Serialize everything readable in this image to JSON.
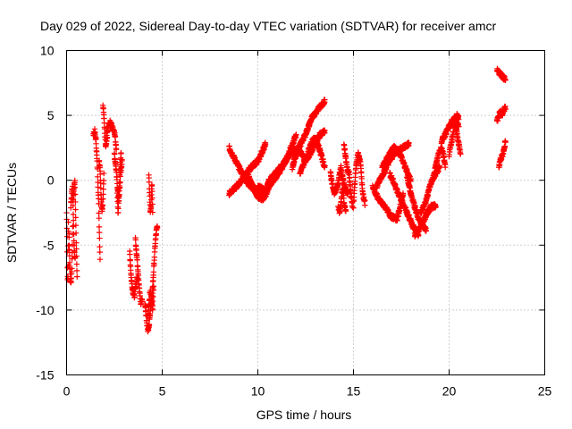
{
  "chart_data": {
    "type": "scatter",
    "title": "Day 029 of 2022, Sidereal Day-to-day VTEC variation (SDTVAR) for receiver amcr",
    "xlabel": "GPS time / hours",
    "ylabel": "SDTVAR / TECUs",
    "xlim": [
      0,
      25
    ],
    "ylim": [
      -15,
      10
    ],
    "x_ticks": [
      "0",
      "5",
      "10",
      "15",
      "20",
      "25"
    ],
    "y_ticks": [
      "-15",
      "-10",
      "-5",
      "0",
      "5",
      "10"
    ],
    "grid": true,
    "marker": "+",
    "color": "#ff0000",
    "segments": [
      {
        "x0": 0.0,
        "x1": 0.12,
        "y": [
          -2.5,
          -4.0,
          -7.5,
          -7.6,
          -3.0,
          -6.5
        ]
      },
      {
        "x0": 0.12,
        "x1": 0.32,
        "y": [
          -4.0,
          -6.0,
          -7.7,
          -7.8,
          -6.5,
          -3.5
        ]
      },
      {
        "x0": 0.22,
        "x1": 0.45,
        "y": [
          -2.0,
          -1.0,
          -0.5,
          -3.0,
          -5.5,
          -6.0
        ]
      },
      {
        "x0": 0.35,
        "x1": 0.55,
        "y": [
          -1.5,
          -0.5,
          0.0,
          -2.5,
          -5.0,
          -7.5
        ]
      },
      {
        "x0": 1.4,
        "x1": 1.75,
        "y": [
          3.5,
          3.8,
          3.0,
          1.0,
          -2.0,
          -6.0
        ]
      },
      {
        "x0": 1.7,
        "x1": 1.95,
        "y": [
          1.5,
          1.0,
          -1.0,
          -2.5,
          -1.5,
          0.5
        ]
      },
      {
        "x0": 1.9,
        "x1": 2.15,
        "y": [
          5.8,
          5.0,
          3.5,
          2.5,
          3.0,
          4.0
        ]
      },
      {
        "x0": 2.1,
        "x1": 2.6,
        "y": [
          3.5,
          4.3,
          4.5,
          4.0,
          3.8,
          2.5
        ]
      },
      {
        "x0": 2.5,
        "x1": 2.9,
        "y": [
          2.0,
          1.0,
          -0.5,
          -1.5,
          0.5,
          1.5
        ]
      },
      {
        "x0": 2.65,
        "x1": 2.85,
        "y": [
          -1.0,
          -2.5,
          -1.5,
          0.0,
          1.5,
          2.0
        ]
      },
      {
        "x0": 3.3,
        "x1": 3.7,
        "y": [
          -5.5,
          -7.5,
          -8.5,
          -9.0,
          -8.0,
          -7.5
        ]
      },
      {
        "x0": 3.6,
        "x1": 3.95,
        "y": [
          -4.5,
          -5.8,
          -7.0,
          -8.5,
          -9.5,
          -9.2
        ]
      },
      {
        "x0": 4.1,
        "x1": 4.45,
        "y": [
          -9.5,
          -10.5,
          -11.5,
          -11.3,
          -10.0,
          -9.0
        ]
      },
      {
        "x0": 4.25,
        "x1": 4.55,
        "y": [
          -10.5,
          -9.5,
          -8.5,
          -9.0,
          -10.0,
          -8.0
        ]
      },
      {
        "x0": 4.3,
        "x1": 4.5,
        "y": [
          0.5,
          -1.0,
          -2.5,
          -2.0,
          0.0,
          -2.5
        ]
      },
      {
        "x0": 4.45,
        "x1": 4.75,
        "y": [
          -9.5,
          -8.0,
          -6.5,
          -5.0,
          -4.0,
          -3.5
        ]
      },
      {
        "x0": 8.5,
        "x1": 10.2,
        "y": [
          2.5,
          1.5,
          0.5,
          -0.3,
          -0.8,
          -1.0
        ]
      },
      {
        "x0": 8.5,
        "x1": 10.4,
        "y": [
          -1.0,
          -0.5,
          0.2,
          1.0,
          1.5,
          2.8
        ]
      },
      {
        "x0": 9.5,
        "x1": 10.7,
        "y": [
          0.3,
          -0.5,
          -1.2,
          -1.5,
          -1.0,
          0.0
        ]
      },
      {
        "x0": 10.0,
        "x1": 12.0,
        "y": [
          -0.5,
          -0.8,
          0.0,
          0.8,
          2.0,
          3.5
        ]
      },
      {
        "x0": 10.5,
        "x1": 12.5,
        "y": [
          -0.2,
          0.5,
          1.2,
          2.0,
          2.5,
          1.5
        ]
      },
      {
        "x0": 11.8,
        "x1": 13.5,
        "y": [
          1.0,
          2.5,
          3.5,
          4.8,
          5.5,
          6.1
        ]
      },
      {
        "x0": 12.2,
        "x1": 13.5,
        "y": [
          0.5,
          1.5,
          2.0,
          2.8,
          3.5,
          3.8
        ]
      },
      {
        "x0": 12.5,
        "x1": 13.5,
        "y": [
          1.5,
          2.5,
          3.2,
          3.0,
          2.0,
          1.0
        ]
      },
      {
        "x0": 13.8,
        "x1": 14.7,
        "y": [
          0.5,
          -1.0,
          -0.5,
          1.0,
          -0.5,
          -1.0
        ]
      },
      {
        "x0": 14.2,
        "x1": 14.6,
        "y": [
          -2.0,
          -2.5,
          -1.5,
          -0.5,
          -2.0,
          -2.3
        ]
      },
      {
        "x0": 14.5,
        "x1": 14.95,
        "y": [
          2.8,
          1.8,
          0.8,
          0.5,
          -1.0,
          -2.0
        ]
      },
      {
        "x0": 15.0,
        "x1": 15.6,
        "y": [
          -2.0,
          1.0,
          2.0,
          1.5,
          -1.0,
          -1.8
        ]
      },
      {
        "x0": 16.0,
        "x1": 17.6,
        "y": [
          -0.5,
          -1.5,
          -2.0,
          -2.8,
          -3.0,
          -1.0
        ]
      },
      {
        "x0": 16.2,
        "x1": 17.9,
        "y": [
          -0.5,
          0.5,
          1.5,
          2.2,
          2.5,
          2.8
        ]
      },
      {
        "x0": 16.5,
        "x1": 18.0,
        "y": [
          1.0,
          1.8,
          2.5,
          2.2,
          1.0,
          0.0
        ]
      },
      {
        "x0": 16.9,
        "x1": 18.4,
        "y": [
          0.5,
          -0.5,
          -1.5,
          -2.5,
          -3.5,
          -4.2
        ]
      },
      {
        "x0": 17.8,
        "x1": 18.8,
        "y": [
          0.2,
          -1.0,
          -2.0,
          -3.0,
          -3.5,
          -3.8
        ]
      },
      {
        "x0": 18.2,
        "x1": 19.3,
        "y": [
          -4.2,
          -3.8,
          -3.2,
          -2.5,
          -2.0,
          -2.0
        ]
      },
      {
        "x0": 18.5,
        "x1": 19.5,
        "y": [
          -2.5,
          -2.0,
          -1.0,
          0.0,
          0.5,
          1.0
        ]
      },
      {
        "x0": 19.2,
        "x1": 19.8,
        "y": [
          0.5,
          1.2,
          2.0,
          2.5,
          2.2,
          1.0
        ]
      },
      {
        "x0": 19.6,
        "x1": 20.5,
        "y": [
          3.0,
          3.5,
          4.0,
          4.5,
          4.8,
          4.2
        ]
      },
      {
        "x0": 20.0,
        "x1": 20.5,
        "y": [
          2.0,
          2.8,
          3.5,
          4.5,
          5.0,
          4.8
        ]
      },
      {
        "x0": 20.3,
        "x1": 20.6,
        "y": [
          4.5,
          4.0,
          3.5,
          3.0,
          2.5,
          2.0
        ]
      },
      {
        "x0": 22.5,
        "x1": 22.95,
        "y": [
          8.5,
          8.3,
          8.2,
          8.0,
          7.9,
          7.8
        ]
      },
      {
        "x0": 22.5,
        "x1": 22.95,
        "y": [
          4.5,
          5.0,
          5.3,
          5.0,
          5.4,
          5.6
        ]
      },
      {
        "x0": 22.6,
        "x1": 22.95,
        "y": [
          1.0,
          1.5,
          1.8,
          2.0,
          2.5,
          3.0
        ]
      }
    ]
  }
}
